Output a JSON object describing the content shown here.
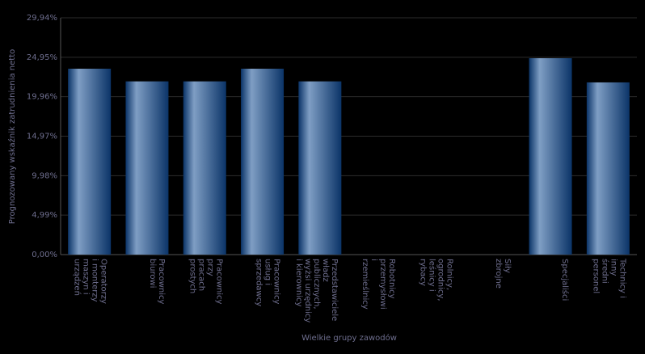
{
  "chart_data": {
    "type": "bar",
    "x_label": "Wielkie grupy zawodów",
    "y_label": "Prognozowany wskaźnik zatrudnienia netto",
    "categories": [
      [
        "Operatorzy",
        "i monterzy",
        "maszyn i",
        "urządzeń"
      ],
      [
        "Pracownicy",
        "biurowi"
      ],
      [
        "Pracownicy",
        "przy",
        "pracach",
        "prostych"
      ],
      [
        "Pracownicy",
        "usług i",
        "sprzedawcy"
      ],
      [
        "Przedstawiciele",
        "władz",
        "publicznych,",
        "wyżsi urzędnicy",
        "i kierownicy"
      ],
      [
        "Robotnicy",
        "przemysłowi",
        "i",
        "rzemieślnicy"
      ],
      [
        "Rolnicy,",
        "ogrodnicy,",
        "leśnicy i",
        "rybacy"
      ],
      [
        "Siły",
        "zbrojne"
      ],
      [
        "Specjaliści"
      ],
      [
        "Technicy i",
        "inny",
        "średni",
        "personel"
      ]
    ],
    "values": [
      23.5,
      21.9,
      21.9,
      23.5,
      21.9,
      0,
      0,
      0,
      24.83,
      21.77
    ],
    "color_light": "#7f9ec4",
    "color_dark": "#0b3468",
    "ylim": [
      0,
      29.94
    ],
    "yticks": [
      {
        "value": 0,
        "label": "0,00%"
      },
      {
        "value": 4.99,
        "label": "4,99%"
      },
      {
        "value": 9.98,
        "label": "9,98%"
      },
      {
        "value": 14.97,
        "label": "14,97%"
      },
      {
        "value": 19.96,
        "label": "19,96%"
      },
      {
        "value": 24.95,
        "label": "24,95%"
      },
      {
        "value": 29.94,
        "label": "29,94%"
      }
    ],
    "grid": true
  }
}
